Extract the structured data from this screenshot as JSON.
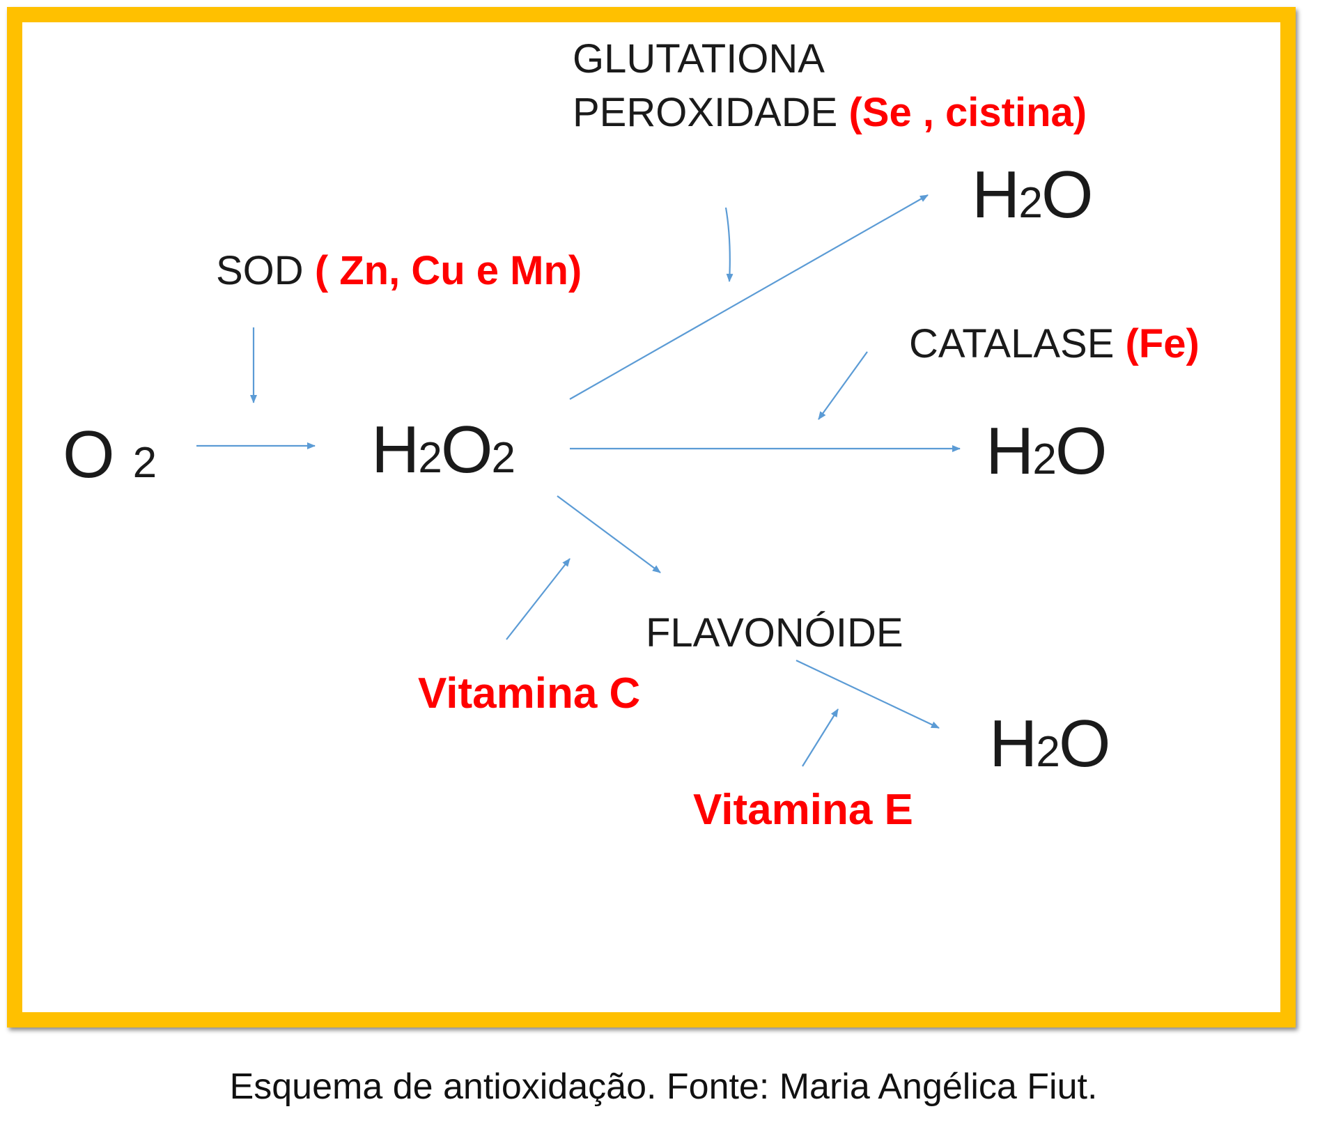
{
  "colors": {
    "frame": "#FFC000",
    "arrow": "#5B9BD5",
    "accent_text": "#FF0000",
    "text": "#1a1a1a"
  },
  "nodes": {
    "o2": {
      "base": "O",
      "sub": "2"
    },
    "h2o2": {
      "h": "H",
      "sub1": "2",
      "o": "O",
      "sub2": "2"
    },
    "h2o_top": {
      "h": "H",
      "sub": "2",
      "o": "O"
    },
    "h2o_mid": {
      "h": "H",
      "sub": "2",
      "o": "O"
    },
    "h2o_bottom": {
      "h": "H",
      "sub": "2",
      "o": "O"
    }
  },
  "labels": {
    "glutationa_line1": "GLUTATIONA",
    "glutationa_line2": "PEROXIDADE",
    "glutationa_cofactors": "(Se , cistina)",
    "sod": "SOD",
    "sod_cofactors": "( Zn, Cu e Mn)",
    "catalase": "CATALASE",
    "catalase_cofactor": "(Fe)",
    "flavonoide": "FLAVONÓIDE",
    "vitamina_c": "Vitamina C",
    "vitamina_e": "Vitamina E"
  },
  "caption": "Esquema de antioxidação. Fonte: Maria Angélica Fiut."
}
